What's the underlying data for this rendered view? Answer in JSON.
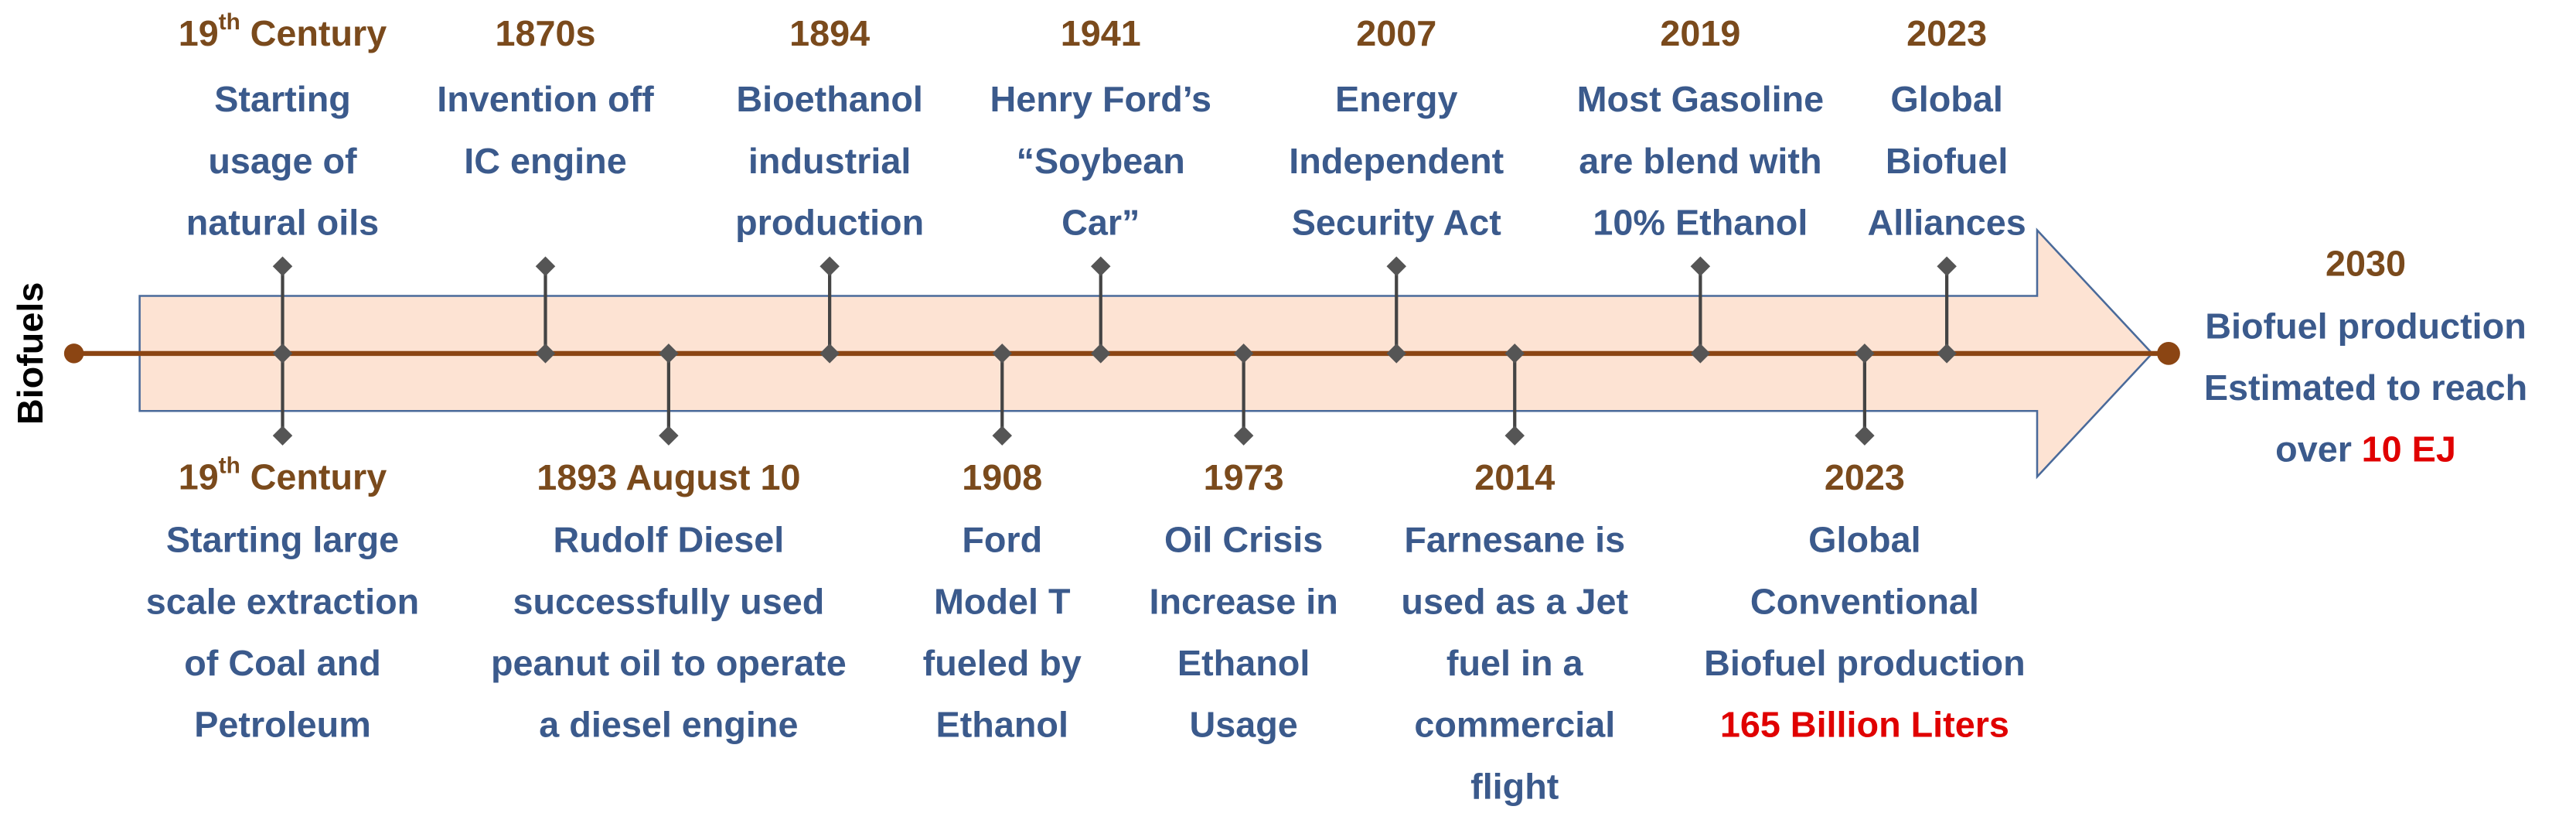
{
  "axis_label": "Biofuels",
  "top_events": [
    {
      "year": "19",
      "year_sup": "th",
      "year_suffix": "Century",
      "lines": [
        "Starting",
        "usage of",
        "natural oils"
      ]
    },
    {
      "year": "1870s",
      "lines": [
        "Invention off",
        "IC engine"
      ]
    },
    {
      "year": "1894",
      "lines": [
        "Bioethanol",
        "industrial",
        "production"
      ]
    },
    {
      "year": "1941",
      "lines": [
        "Henry Ford’s",
        "“Soybean",
        "Car”"
      ]
    },
    {
      "year": "2007",
      "lines": [
        "Energy",
        "Independent",
        "Security Act"
      ]
    },
    {
      "year": "2019",
      "lines": [
        "Most Gasoline",
        "are blend with",
        "10% Ethanol"
      ]
    },
    {
      "year": "2023",
      "lines": [
        "Global",
        "Biofuel",
        "Alliances"
      ]
    }
  ],
  "bottom_events": [
    {
      "year": "19",
      "year_sup": "th",
      "year_suffix": "Century",
      "lines": [
        "Starting large",
        "scale extraction",
        "of Coal and",
        "Petroleum"
      ]
    },
    {
      "year": "1893 August 10",
      "lines": [
        "Rudolf Diesel",
        "successfully used",
        "peanut oil to operate",
        "a diesel engine"
      ]
    },
    {
      "year": "1908",
      "lines": [
        "Ford",
        "Model T",
        "fueled by",
        "Ethanol"
      ]
    },
    {
      "year": "1973",
      "lines": [
        "Oil Crisis",
        "Increase in",
        "Ethanol",
        "Usage"
      ]
    },
    {
      "year": "2014",
      "lines": [
        "Farnesane is",
        "used as a Jet",
        "fuel in a",
        "commercial",
        "flight"
      ]
    },
    {
      "year": "2023",
      "lines": [
        "Global",
        "Conventional",
        "Biofuel production"
      ],
      "highlight": "165 Billion Liters"
    }
  ],
  "end_event": {
    "year": "2030",
    "lines": [
      "Biofuel production",
      "Estimated to reach"
    ],
    "last_prefix": "over",
    "highlight": "10 EJ"
  }
}
